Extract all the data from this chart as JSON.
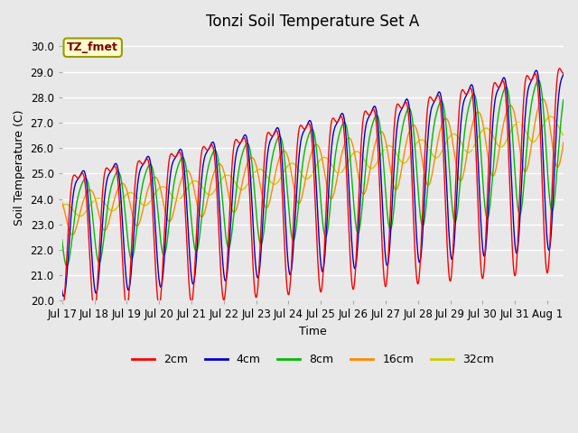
{
  "title": "Tonzi Soil Temperature Set A",
  "xlabel": "Time",
  "ylabel": "Soil Temperature (C)",
  "ylim": [
    20.0,
    30.5
  ],
  "yticks": [
    20.0,
    21.0,
    22.0,
    23.0,
    24.0,
    25.0,
    26.0,
    27.0,
    28.0,
    29.0,
    30.0
  ],
  "annotation_text": "TZ_fmet",
  "annotation_color": "#800000",
  "annotation_bg": "#ffffcc",
  "annotation_border": "#999900",
  "line_colors": {
    "2cm": "#ff0000",
    "4cm": "#0000cc",
    "8cm": "#00bb00",
    "16cm": "#ff8800",
    "32cm": "#cccc00"
  },
  "legend_labels": [
    "2cm",
    "4cm",
    "8cm",
    "16cm",
    "32cm"
  ],
  "background_color": "#e8e8e8",
  "plot_bg_color": "#e8e8e8",
  "grid_color": "#ffffff",
  "title_fontsize": 12,
  "axis_fontsize": 9,
  "tick_fontsize": 8.5,
  "xtick_labels": [
    "Jul 17",
    "Jul 18",
    "Jul 19",
    "Jul 20",
    "Jul 21",
    "Jul 22",
    "Jul 23",
    "Jul 24",
    "Jul 25",
    "Jul 26",
    "Jul 27",
    "Jul 28",
    "Jul 29",
    "Jul 30",
    "Jul 31",
    "Aug 1"
  ]
}
